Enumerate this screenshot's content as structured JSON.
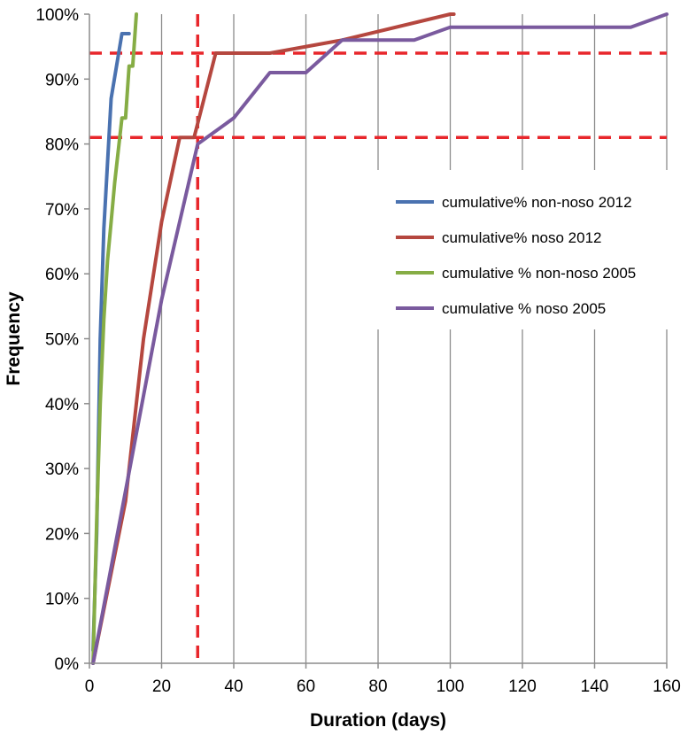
{
  "chart_data": {
    "type": "line",
    "title": "",
    "xlabel": "Duration (days)",
    "ylabel": "Frequency",
    "xlim": [
      0,
      160
    ],
    "ylim": [
      0,
      100
    ],
    "x_ticks": [
      0,
      20,
      40,
      60,
      80,
      100,
      120,
      140,
      160
    ],
    "y_ticks": [
      0,
      10,
      20,
      30,
      40,
      50,
      60,
      70,
      80,
      90,
      100
    ],
    "y_tick_suffix": "%",
    "grid": "vertical",
    "legend_position": "right",
    "series": [
      {
        "name": "cumulative% non-noso 2012",
        "color": "#4a72b0",
        "points": [
          [
            1,
            2
          ],
          [
            2,
            20
          ],
          [
            3,
            50
          ],
          [
            4,
            67
          ],
          [
            6,
            87
          ],
          [
            9,
            97
          ],
          [
            11,
            97
          ]
        ]
      },
      {
        "name": "cumulative% noso 2012",
        "color": "#b5473f",
        "points": [
          [
            1,
            0
          ],
          [
            10,
            25
          ],
          [
            15,
            50
          ],
          [
            20,
            68
          ],
          [
            25,
            81
          ],
          [
            29,
            81
          ],
          [
            35,
            94
          ],
          [
            50,
            94
          ],
          [
            70,
            96
          ],
          [
            100,
            100
          ],
          [
            101,
            100
          ]
        ]
      },
      {
        "name": "cumulative % non-noso 2005",
        "color": "#86ad45",
        "points": [
          [
            1,
            0
          ],
          [
            2,
            22
          ],
          [
            3,
            40
          ],
          [
            4,
            53
          ],
          [
            5,
            62
          ],
          [
            6,
            68
          ],
          [
            7,
            74
          ],
          [
            8,
            79
          ],
          [
            9,
            84
          ],
          [
            10,
            84
          ],
          [
            11,
            92
          ],
          [
            12,
            92
          ],
          [
            13,
            100
          ]
        ]
      },
      {
        "name": "cumulative % noso 2005",
        "color": "#7a5a9e",
        "points": [
          [
            1,
            0
          ],
          [
            20,
            56
          ],
          [
            30,
            80
          ],
          [
            40,
            84
          ],
          [
            50,
            91
          ],
          [
            60,
            91
          ],
          [
            70,
            96
          ],
          [
            90,
            96
          ],
          [
            100,
            98
          ],
          [
            150,
            98
          ],
          [
            160,
            100
          ]
        ]
      }
    ],
    "reference_lines": [
      {
        "orientation": "horizontal",
        "value": 94,
        "color": "#e8262b"
      },
      {
        "orientation": "horizontal",
        "value": 81,
        "color": "#e8262b"
      },
      {
        "orientation": "vertical",
        "value": 30,
        "color": "#e8262b"
      }
    ]
  }
}
